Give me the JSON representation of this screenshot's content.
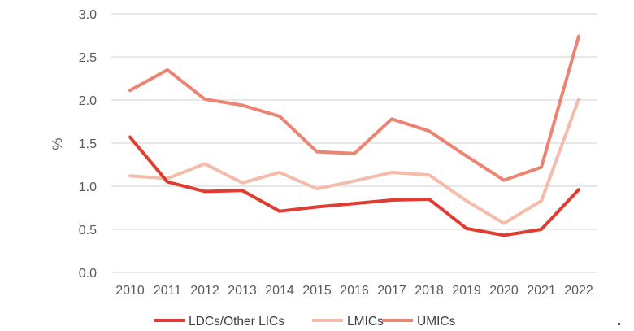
{
  "chart_data": {
    "type": "line",
    "title": "",
    "xlabel": "",
    "ylabel": "%",
    "ylim": [
      0,
      3.0
    ],
    "yticks": [
      "0.0",
      "0.5",
      "1.0",
      "1.5",
      "2.0",
      "2.5",
      "3.0"
    ],
    "categories": [
      "2010",
      "2011",
      "2012",
      "2013",
      "2014",
      "2015",
      "2016",
      "2017",
      "2018",
      "2019",
      "2020",
      "2021",
      "2022"
    ],
    "grid": "horizontal",
    "legend_position": "bottom",
    "series": [
      {
        "name": "LDCs/Other LICs",
        "color": "#e03c31",
        "values": [
          1.57,
          1.05,
          0.94,
          0.95,
          0.71,
          0.76,
          0.8,
          0.84,
          0.85,
          0.51,
          0.43,
          0.5,
          0.96
        ]
      },
      {
        "name": "LMICs",
        "color": "#f4bcab",
        "values": [
          1.12,
          1.09,
          1.26,
          1.04,
          1.16,
          0.97,
          1.06,
          1.16,
          1.13,
          0.83,
          0.57,
          0.83,
          2.01
        ]
      },
      {
        "name": "UMICs",
        "color": "#eb8472",
        "values": [
          2.11,
          2.35,
          2.01,
          1.94,
          1.81,
          1.4,
          1.38,
          1.78,
          1.64,
          1.35,
          1.07,
          1.22,
          2.74
        ]
      }
    ]
  }
}
